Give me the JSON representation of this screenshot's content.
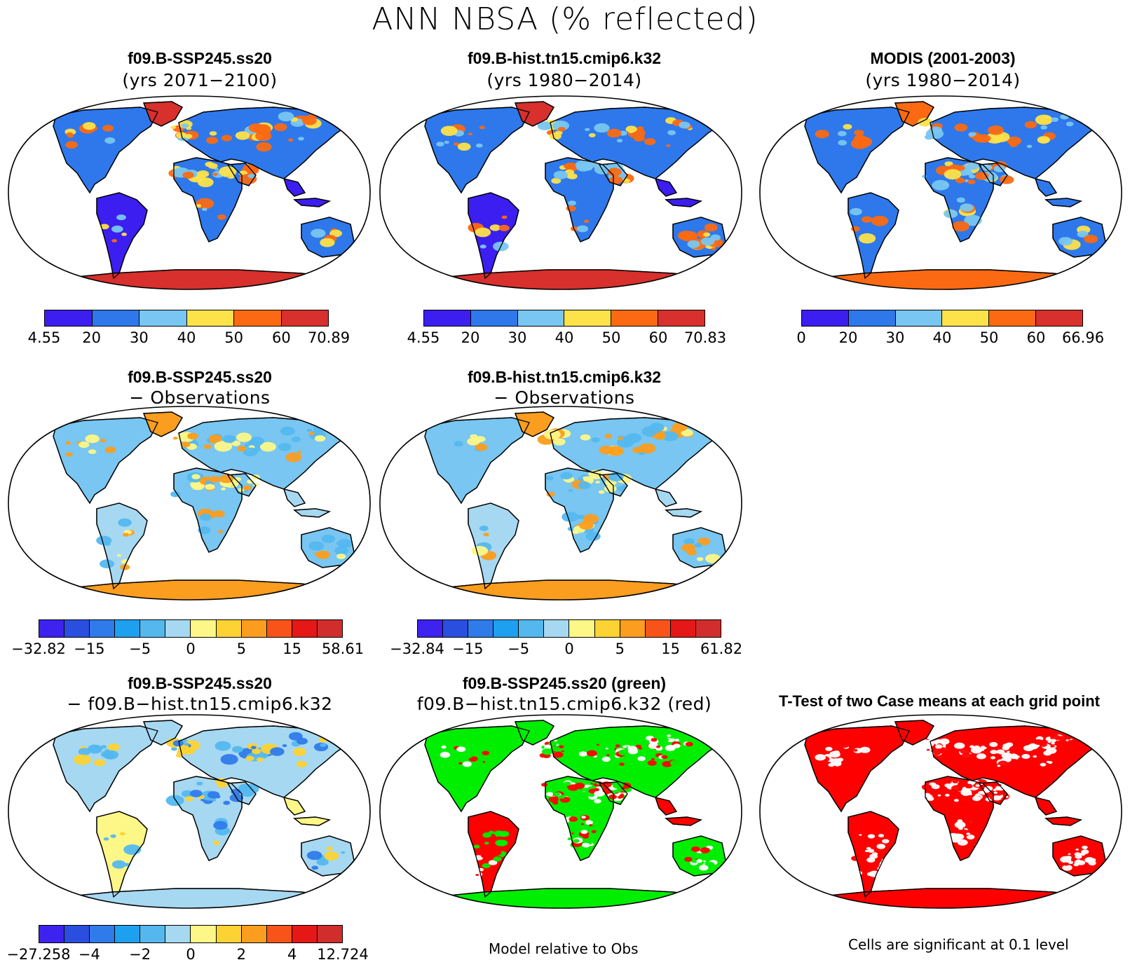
{
  "title": "ANN NBSA (% reflected)",
  "colors": {
    "seq6": [
      "#3c1ef0",
      "#2e78eb",
      "#78c6f1",
      "#fde24a",
      "#fb6a12",
      "#d7302d"
    ],
    "diff11": [
      "#3e22f0",
      "#2a4fe0",
      "#2f7bea",
      "#1ea0f0",
      "#54b8ef",
      "#a6d8f2",
      "#fdf787",
      "#fcd333",
      "#fb9d1e",
      "#f8541a",
      "#e51717",
      "#d12d2d"
    ],
    "ocean": "#ffffff",
    "sig_red": "#ff0000",
    "green": "#00ee00"
  },
  "panels": [
    {
      "id": "case1-mean",
      "title": "f09.B-SSP245.ss20",
      "subtitle": "(yrs 2071−2100)",
      "palette": "seq6",
      "land_style": "case1",
      "colorbar": {
        "labels": [
          "4.55",
          "20",
          "30",
          "40",
          "50",
          "60",
          "70.89"
        ]
      }
    },
    {
      "id": "case2-mean",
      "title": "f09.B-hist.tn15.cmip6.k32",
      "subtitle": "(yrs 1980−2014)",
      "palette": "seq6",
      "land_style": "case2",
      "colorbar": {
        "labels": [
          "4.55",
          "20",
          "30",
          "40",
          "50",
          "60",
          "70.83"
        ]
      }
    },
    {
      "id": "obs-mean",
      "title": "MODIS (2001-2003)",
      "subtitle": "(yrs 1980−2014)",
      "palette": "seq6",
      "land_style": "obs",
      "colorbar": {
        "labels": [
          "0",
          "20",
          "30",
          "40",
          "50",
          "60",
          "66.96"
        ]
      }
    },
    {
      "id": "case1-minus-obs",
      "title": "f09.B-SSP245.ss20",
      "subtitle": "− Observations",
      "palette": "diff11",
      "land_style": "diffobs",
      "colorbar": {
        "labels": [
          "−32.82",
          "−15",
          "−5",
          "0",
          "5",
          "15",
          "58.61"
        ]
      }
    },
    {
      "id": "case2-minus-obs",
      "title": "f09.B-hist.tn15.cmip6.k32",
      "subtitle": "− Observations",
      "palette": "diff11",
      "land_style": "diffobs",
      "colorbar": {
        "labels": [
          "−32.84",
          "−15",
          "−5",
          "0",
          "5",
          "15",
          "61.82"
        ]
      }
    },
    {
      "id": "case1-minus-case2",
      "title": "f09.B-SSP245.ss20",
      "subtitle": "− f09.B−hist.tn15.cmip6.k32",
      "palette": "diff11",
      "land_style": "diffcase",
      "colorbar": {
        "labels": [
          "−27.258",
          "−4",
          "−2",
          "0",
          "2",
          "4",
          "12.724"
        ]
      }
    },
    {
      "id": "model-relative-obs",
      "title": "f09.B-SSP245.ss20 (green)",
      "subtitle": "f09.B−hist.tn15.cmip6.k32 (red)",
      "palette": "rg",
      "land_style": "rg",
      "note": "Model relative to Obs"
    },
    {
      "id": "t-test",
      "title": "T-Test of two Case means at each grid point",
      "subtitle": "",
      "palette": "sig",
      "land_style": "sig",
      "note": "Cells are significant at 0.1 level"
    }
  ]
}
